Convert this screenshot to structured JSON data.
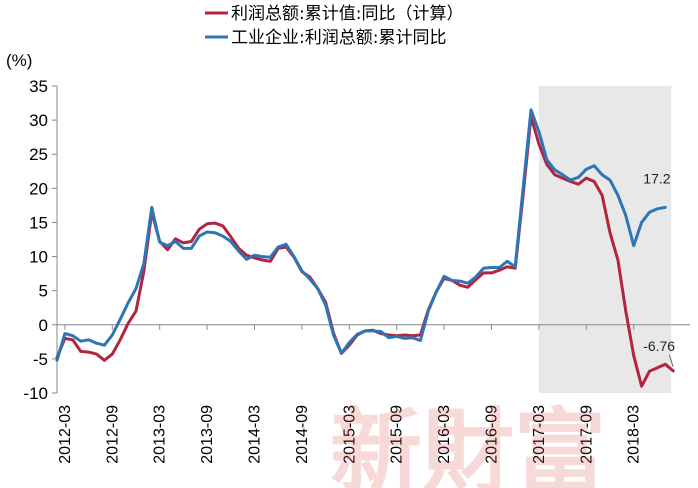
{
  "chart_data": {
    "type": "line",
    "y_unit": "(%)",
    "ylim": [
      -10,
      35
    ],
    "y_ticks": [
      -10,
      -5,
      0,
      5,
      10,
      15,
      20,
      25,
      30,
      35
    ],
    "x_tick_labels": [
      "2012-03",
      "2012-09",
      "2013-03",
      "2013-09",
      "2014-03",
      "2014-09",
      "2015-03",
      "2015-09",
      "2016-03",
      "2016-09",
      "2017-03",
      "2017-09",
      "2018-03"
    ],
    "x_start": "2012-02",
    "grid": false,
    "legend_position": "top-center",
    "highlight_range": [
      "2017-03",
      "2018-07"
    ],
    "highlight_color": "#e8e8e8",
    "watermark": "新財富",
    "series": [
      {
        "name": "利润总额:累计值:同比（计算）",
        "color": "#b5243f",
        "values": [
          -4.8,
          -2.0,
          -2.2,
          -3.9,
          -4.0,
          -4.3,
          -5.2,
          -4.3,
          -2.2,
          0.2,
          2.0,
          7.9,
          16.5,
          12.2,
          11.0,
          12.6,
          12.0,
          12.2,
          14.0,
          14.8,
          14.9,
          14.5,
          12.9,
          11.2,
          10.2,
          9.8,
          9.5,
          9.3,
          11.2,
          11.4,
          9.9,
          7.8,
          7.0,
          5.3,
          3.3,
          -1.2,
          -4.2,
          -3.0,
          -1.5,
          -0.9,
          -0.8,
          -1.3,
          -1.5,
          -1.6,
          -1.5,
          -1.6,
          -1.5,
          2.2,
          4.8,
          6.8,
          6.5,
          5.8,
          5.5,
          6.6,
          7.6,
          7.6,
          8.0,
          8.5,
          8.3,
          19.0,
          30.5,
          26.5,
          23.5,
          22.0,
          21.5,
          21.0,
          20.6,
          21.5,
          21.0,
          19.0,
          13.5,
          9.5,
          2.0,
          -4.5,
          -9.0,
          -6.8,
          -6.3,
          -5.8,
          -6.76
        ]
      },
      {
        "name": "工业企业:利润总额:累计同比",
        "color": "#2e75b6",
        "values": [
          -5.2,
          -1.3,
          -1.6,
          -2.4,
          -2.2,
          -2.7,
          -3.0,
          -1.5,
          0.8,
          3.2,
          5.3,
          9.0,
          17.2,
          12.1,
          11.6,
          12.2,
          11.2,
          11.2,
          13.0,
          13.6,
          13.5,
          13.0,
          12.2,
          10.8,
          9.6,
          10.2,
          10.0,
          9.9,
          11.4,
          11.8,
          10.0,
          7.9,
          6.7,
          5.3,
          2.9,
          -1.5,
          -4.2,
          -2.6,
          -1.4,
          -0.9,
          -0.9,
          -1.0,
          -1.9,
          -1.7,
          -2.0,
          -1.9,
          -2.3,
          2.0,
          4.8,
          7.1,
          6.5,
          6.4,
          6.1,
          7.0,
          8.3,
          8.4,
          8.4,
          9.3,
          8.5,
          20.0,
          31.5,
          28.3,
          24.2,
          22.7,
          22.0,
          21.2,
          21.6,
          22.8,
          23.3,
          22.0,
          21.2,
          19.0,
          16.0,
          11.6,
          15.0,
          16.5,
          17.0,
          17.2
        ]
      }
    ],
    "annotations": [
      "17.2",
      "-6.76"
    ]
  }
}
